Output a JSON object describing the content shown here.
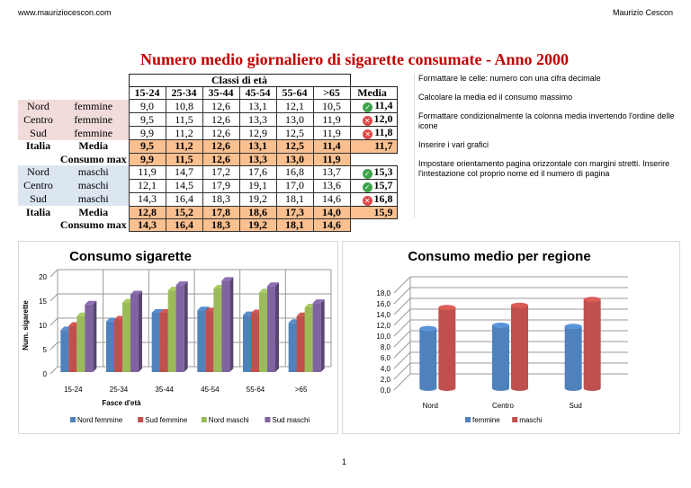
{
  "header": {
    "left": "www.mauriziocescon.com",
    "right": "Maurizio Cescon"
  },
  "title": "Numero medio giornaliero di sigarette consumate - Anno 2000",
  "table": {
    "group_header": "Classi di età",
    "columns": [
      "15-24",
      "25-34",
      "35-44",
      "45-54",
      "55-64",
      ">65",
      "Media"
    ],
    "rows": [
      {
        "region": "Nord",
        "gender": "femmine",
        "values": [
          "9,0",
          "10,8",
          "12,6",
          "13,1",
          "12,1",
          "10,5"
        ],
        "media": "11,4",
        "icon": "check-icon"
      },
      {
        "region": "Centro",
        "gender": "femmine",
        "values": [
          "9,5",
          "11,5",
          "12,6",
          "13,3",
          "13,0",
          "11,9"
        ],
        "media": "12,0",
        "icon": "cross-icon"
      },
      {
        "region": "Sud",
        "gender": "femmine",
        "values": [
          "9,9",
          "11,2",
          "12,6",
          "12,9",
          "12,5",
          "11,9"
        ],
        "media": "11,8",
        "icon": "cross-icon"
      },
      {
        "region": "Italia",
        "gender": "Media",
        "values": [
          "9,5",
          "11,2",
          "12,6",
          "13,1",
          "12,5",
          "11,4"
        ],
        "media": "11,7"
      },
      {
        "region": "",
        "gender": "Consumo max",
        "values": [
          "9,9",
          "11,5",
          "12,6",
          "13,3",
          "13,0",
          "11,9"
        ],
        "media": ""
      },
      {
        "region": "Nord",
        "gender": "maschi",
        "values": [
          "11,9",
          "14,7",
          "17,2",
          "17,6",
          "16,8",
          "13,7"
        ],
        "media": "15,3",
        "icon": "check-icon"
      },
      {
        "region": "Centro",
        "gender": "maschi",
        "values": [
          "12,1",
          "14,5",
          "17,9",
          "19,1",
          "17,0",
          "13,6"
        ],
        "media": "15,7",
        "icon": "check-icon"
      },
      {
        "region": "Sud",
        "gender": "maschi",
        "values": [
          "14,3",
          "16,4",
          "18,3",
          "19,2",
          "18,1",
          "14,6"
        ],
        "media": "16,8",
        "icon": "cross-icon"
      },
      {
        "region": "Italia",
        "gender": "Media",
        "values": [
          "12,8",
          "15,2",
          "17,8",
          "18,6",
          "17,3",
          "14,0"
        ],
        "media": "15,9"
      },
      {
        "region": "",
        "gender": "Consumo max",
        "values": [
          "14,3",
          "16,4",
          "18,3",
          "19,2",
          "18,1",
          "14,6"
        ],
        "media": ""
      }
    ]
  },
  "notes": [
    "Formattare le celle: numero con una cifra decimale",
    "Calcolare la media ed il consumo massimo",
    "Formattare condizionalmente la colonna media invertendo l'ordine delle icone",
    "Inserire i vari grafici",
    "Impostare orientamento pagina orizzontale  con margini stretti. Inserire l'intestazione col proprio nome ed il numero di pagina"
  ],
  "page_number": "1",
  "chart_data": [
    {
      "type": "bar",
      "title": "Consumo sigarette",
      "xlabel": "Fasce d'età",
      "ylabel": "Num. sigarette",
      "ylim": [
        0,
        20
      ],
      "yticks": [
        "0",
        "5",
        "10",
        "15",
        "20"
      ],
      "categories": [
        "15-24",
        "25-34",
        "35-44",
        "45-54",
        "55-64",
        ">65"
      ],
      "series": [
        {
          "name": "Nord femmine",
          "color": "#4f81bd",
          "values": [
            9.0,
            10.8,
            12.6,
            13.1,
            12.1,
            10.5
          ]
        },
        {
          "name": "Sud femmine",
          "color": "#c0504d",
          "values": [
            9.9,
            11.2,
            12.6,
            12.9,
            12.5,
            11.9
          ]
        },
        {
          "name": "Nord maschi",
          "color": "#9bbb59",
          "values": [
            11.9,
            14.7,
            17.2,
            17.6,
            16.8,
            13.7
          ]
        },
        {
          "name": "Sud maschi",
          "color": "#8064a2",
          "values": [
            14.3,
            16.4,
            18.3,
            19.2,
            18.1,
            14.6
          ]
        }
      ],
      "legend": "bottom",
      "grid": true
    },
    {
      "type": "bar",
      "title": "Consumo medio per regione",
      "ylim": [
        0,
        18
      ],
      "yticks": [
        "0,0",
        "2,0",
        "4,0",
        "6,0",
        "8,0",
        "10,0",
        "12,0",
        "14,0",
        "16,0",
        "18,0"
      ],
      "categories": [
        "Nord",
        "Centro",
        "Sud"
      ],
      "series": [
        {
          "name": "femmine",
          "color": "#4f81bd",
          "values": [
            11.4,
            12.0,
            11.8
          ]
        },
        {
          "name": "maschi",
          "color": "#c0504d",
          "values": [
            15.3,
            15.7,
            16.8
          ]
        }
      ],
      "legend": "bottom",
      "grid": true
    }
  ]
}
